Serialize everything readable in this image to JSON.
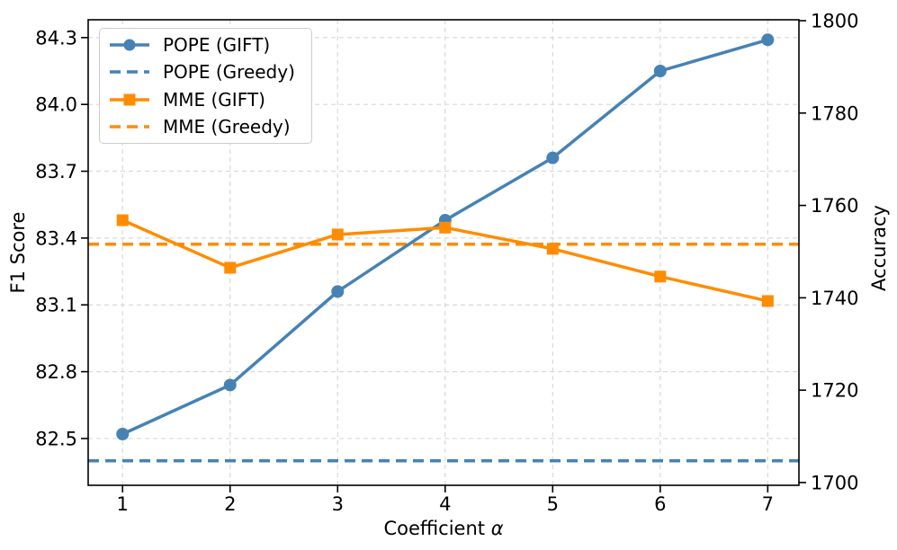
{
  "figure": {
    "background": "#ffffff"
  },
  "chart_data": {
    "type": "line",
    "title": "",
    "x": [
      1,
      2,
      3,
      4,
      5,
      6,
      7
    ],
    "x_tick_labels": [
      "1",
      "2",
      "3",
      "4",
      "5",
      "6",
      "7"
    ],
    "x_range": [
      0.68,
      7.29
    ],
    "xlabel_prefix": "Coefficient ",
    "xlabel_symbol": "α",
    "left_axis": {
      "label": "F1 Score",
      "ticks": [
        82.5,
        82.8,
        83.1,
        83.4,
        83.7,
        84.0,
        84.3
      ],
      "tick_labels": [
        "82.5",
        "82.8",
        "83.1",
        "83.4",
        "83.7",
        "84.0",
        "84.3"
      ],
      "range": [
        82.29,
        84.38
      ]
    },
    "right_axis": {
      "label": "Accuracy",
      "ticks": [
        1700,
        1720,
        1740,
        1760,
        1780,
        1800
      ],
      "tick_labels": [
        "1700",
        "1720",
        "1740",
        "1760",
        "1780",
        "1800"
      ],
      "range": [
        1699.4,
        1800.2
      ]
    },
    "series": [
      {
        "name": "POPE (GIFT)",
        "axis": "left",
        "type": "line",
        "marker": "circle",
        "linestyle": "solid",
        "color": "#4682B4",
        "values": [
          82.52,
          82.74,
          83.16,
          83.48,
          83.76,
          84.15,
          84.29
        ]
      },
      {
        "name": "POPE (Greedy)",
        "axis": "left",
        "type": "hline",
        "marker": "none",
        "linestyle": "dashed",
        "color": "#4682B4",
        "value": 82.4
      },
      {
        "name": "MME (GIFT)",
        "axis": "right",
        "type": "line",
        "marker": "square",
        "linestyle": "solid",
        "color": "#FF8C00",
        "values": [
          1756.8,
          1746.5,
          1753.7,
          1755.2,
          1750.6,
          1744.6,
          1739.3
        ]
      },
      {
        "name": "MME (Greedy)",
        "axis": "right",
        "type": "hline",
        "marker": "none",
        "linestyle": "dashed",
        "color": "#FF8C00",
        "value": 1751.6
      }
    ],
    "legend": {
      "position": "upper-left"
    },
    "grid": {
      "visible": true,
      "color": "#d9d9d9",
      "style": "dashed"
    }
  }
}
